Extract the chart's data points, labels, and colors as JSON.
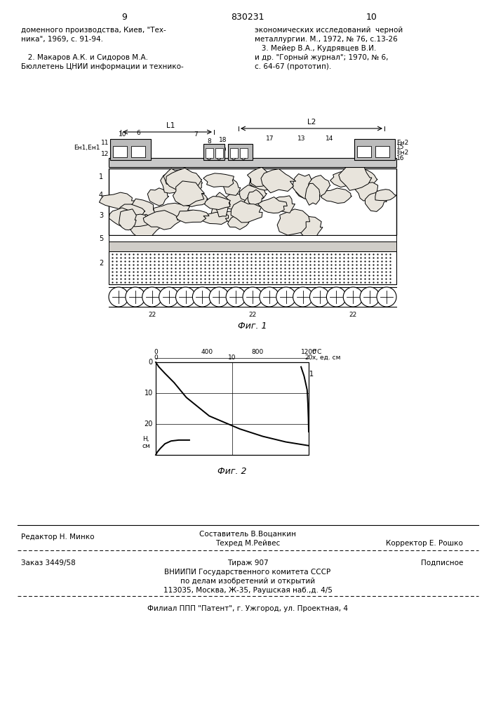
{
  "page_number_left": "9",
  "page_number_center": "830231",
  "page_number_right": "10",
  "text_left": [
    "доменного производства, Киев, \"Тех-",
    "ника\", 1969, с. 91-94.",
    "",
    "   2. Макаров А.К. и Сидоров М.А.",
    "Бюллетень ЦНИИ информации и технико-"
  ],
  "text_right": [
    "экономических исследований  черной",
    "металлургии. М., 1972, № 76, с.13-26",
    "   3. Мейер В.А., Кудрявцев В.И.",
    "и др. \"Горный журнал\"; 1970, № 6,",
    "с. 64-67 (прототип)."
  ],
  "fig1_caption": "Фиг. 1",
  "fig2_caption": "Фиг. 2",
  "footer_line1_left": "Редактор Н. Минко",
  "footer_line1_center": "Составитель В.Воцанкин",
  "footer_line2_center": "Техред М.Рейвес",
  "footer_line2_right": "Корректор Е. Рошко",
  "footer_order": "Заказ 3449/58",
  "footer_tirazh": "Тираж 907",
  "footer_podpisnoe": "Подписное",
  "footer_vniipи": "ВНИИПИ Государственного комитета СССР",
  "footer_po_delam": "по делам изобретений и открытий",
  "footer_address": "113035, Москва, Ж-35, Раушская наб.,д. 4/5",
  "footer_filial": "Филиал ППП \"Патент\", г. Ужгород, ул. Проектная, 4",
  "bg_color": "#ffffff",
  "text_color": "#000000"
}
